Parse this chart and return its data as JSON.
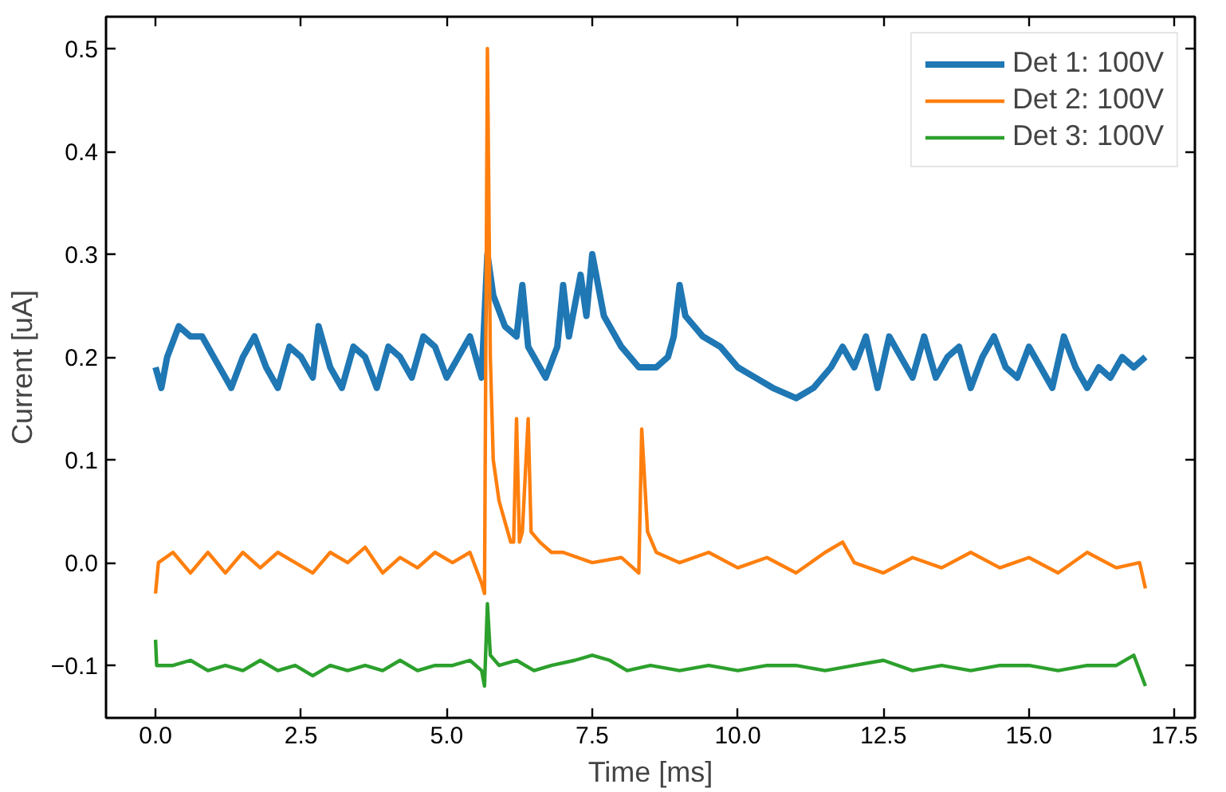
{
  "chart_data": {
    "type": "line",
    "xlabel": "Time [ms]",
    "ylabel": "Current [uA]",
    "xlim": [
      -0.85,
      17.85
    ],
    "ylim": [
      -0.151,
      0.531
    ],
    "xticks": [
      {
        "value": 0,
        "label": "0.0"
      },
      {
        "value": 2.5,
        "label": "2.5"
      },
      {
        "value": 5,
        "label": "5.0"
      },
      {
        "value": 7.5,
        "label": "7.5"
      },
      {
        "value": 10,
        "label": "10.0"
      },
      {
        "value": 12.5,
        "label": "12.5"
      },
      {
        "value": 15,
        "label": "15.0"
      },
      {
        "value": 17.5,
        "label": "17.5"
      }
    ],
    "yticks": [
      {
        "value": -0.1,
        "label": "−0.1"
      },
      {
        "value": 0,
        "label": "0.0"
      },
      {
        "value": 0.1,
        "label": "0.1"
      },
      {
        "value": 0.2,
        "label": "0.2"
      },
      {
        "value": 0.3,
        "label": "0.3"
      },
      {
        "value": 0.4,
        "label": "0.4"
      },
      {
        "value": 0.5,
        "label": "0.5"
      }
    ],
    "grid": false,
    "legend": "top right",
    "marker": "none",
    "line_style": "solid",
    "series": [
      {
        "name": "Det 1: 100V",
        "color": "#1f77b4",
        "x": [
          0,
          0.1,
          0.2,
          0.4,
          0.6,
          0.8,
          1.0,
          1.2,
          1.3,
          1.5,
          1.7,
          1.9,
          2.1,
          2.3,
          2.5,
          2.7,
          2.8,
          3.0,
          3.2,
          3.4,
          3.6,
          3.8,
          4.0,
          4.2,
          4.4,
          4.6,
          4.8,
          5.0,
          5.2,
          5.4,
          5.6,
          5.7,
          5.8,
          6.0,
          6.2,
          6.3,
          6.4,
          6.6,
          6.7,
          6.9,
          7.0,
          7.1,
          7.3,
          7.4,
          7.5,
          7.7,
          8.0,
          8.3,
          8.6,
          8.8,
          8.9,
          9.0,
          9.1,
          9.4,
          9.7,
          10.0,
          10.3,
          10.6,
          11.0,
          11.3,
          11.6,
          11.8,
          12.0,
          12.2,
          12.4,
          12.6,
          12.8,
          13.0,
          13.2,
          13.4,
          13.6,
          13.8,
          14.0,
          14.2,
          14.4,
          14.6,
          14.8,
          15.0,
          15.2,
          15.4,
          15.6,
          15.8,
          16.0,
          16.2,
          16.4,
          16.6,
          16.8,
          17.0
        ],
        "values": [
          0.19,
          0.17,
          0.2,
          0.23,
          0.22,
          0.22,
          0.2,
          0.18,
          0.17,
          0.2,
          0.22,
          0.19,
          0.17,
          0.21,
          0.2,
          0.18,
          0.23,
          0.19,
          0.17,
          0.21,
          0.2,
          0.17,
          0.21,
          0.2,
          0.18,
          0.22,
          0.21,
          0.18,
          0.2,
          0.22,
          0.18,
          0.3,
          0.26,
          0.23,
          0.22,
          0.27,
          0.21,
          0.19,
          0.18,
          0.21,
          0.27,
          0.22,
          0.28,
          0.24,
          0.3,
          0.24,
          0.21,
          0.19,
          0.19,
          0.2,
          0.22,
          0.27,
          0.24,
          0.22,
          0.21,
          0.19,
          0.18,
          0.17,
          0.16,
          0.17,
          0.19,
          0.21,
          0.19,
          0.22,
          0.17,
          0.22,
          0.2,
          0.18,
          0.22,
          0.18,
          0.2,
          0.21,
          0.17,
          0.2,
          0.22,
          0.19,
          0.18,
          0.21,
          0.19,
          0.17,
          0.22,
          0.19,
          0.17,
          0.19,
          0.18,
          0.2,
          0.19,
          0.2
        ]
      },
      {
        "name": "Det 2: 100V",
        "color": "#ff7f0e",
        "x": [
          0,
          0.05,
          0.3,
          0.6,
          0.9,
          1.2,
          1.5,
          1.8,
          2.1,
          2.4,
          2.7,
          3.0,
          3.3,
          3.6,
          3.9,
          4.2,
          4.5,
          4.8,
          5.1,
          5.4,
          5.6,
          5.65,
          5.7,
          5.75,
          5.8,
          5.9,
          6.0,
          6.1,
          6.15,
          6.2,
          6.25,
          6.3,
          6.4,
          6.45,
          6.6,
          6.8,
          7.0,
          7.5,
          8.0,
          8.3,
          8.35,
          8.45,
          8.6,
          9.0,
          9.5,
          10.0,
          10.5,
          11.0,
          11.5,
          11.8,
          12.0,
          12.5,
          13.0,
          13.5,
          14.0,
          14.5,
          15.0,
          15.5,
          16.0,
          16.5,
          16.9,
          17.0
        ],
        "values": [
          -0.03,
          0.0,
          0.01,
          -0.01,
          0.01,
          -0.01,
          0.01,
          -0.005,
          0.01,
          0.0,
          -0.01,
          0.01,
          0.0,
          0.015,
          -0.01,
          0.005,
          -0.005,
          0.01,
          0.0,
          0.01,
          -0.02,
          -0.03,
          0.5,
          0.2,
          0.1,
          0.06,
          0.04,
          0.02,
          0.02,
          0.14,
          0.02,
          0.03,
          0.14,
          0.03,
          0.02,
          0.01,
          0.01,
          0.0,
          0.005,
          -0.01,
          0.13,
          0.03,
          0.01,
          0.0,
          0.01,
          -0.005,
          0.005,
          -0.01,
          0.01,
          0.02,
          0.0,
          -0.01,
          0.005,
          -0.005,
          0.01,
          -0.005,
          0.005,
          -0.01,
          0.01,
          -0.005,
          0.0,
          -0.025
        ]
      },
      {
        "name": "Det 3: 100V",
        "color": "#2ca02c",
        "x": [
          0,
          0.02,
          0.3,
          0.6,
          0.9,
          1.2,
          1.5,
          1.8,
          2.1,
          2.4,
          2.7,
          3.0,
          3.3,
          3.6,
          3.9,
          4.2,
          4.5,
          4.8,
          5.1,
          5.4,
          5.6,
          5.65,
          5.7,
          5.75,
          5.9,
          6.2,
          6.5,
          6.8,
          7.2,
          7.5,
          7.8,
          8.1,
          8.5,
          9.0,
          9.5,
          10.0,
          10.5,
          11.0,
          11.5,
          12.0,
          12.5,
          13.0,
          13.5,
          14.0,
          14.5,
          15.0,
          15.5,
          16.0,
          16.5,
          16.8,
          17.0
        ],
        "values": [
          -0.075,
          -0.1,
          -0.1,
          -0.095,
          -0.105,
          -0.1,
          -0.105,
          -0.095,
          -0.105,
          -0.1,
          -0.11,
          -0.1,
          -0.105,
          -0.1,
          -0.105,
          -0.095,
          -0.105,
          -0.1,
          -0.1,
          -0.095,
          -0.105,
          -0.12,
          -0.04,
          -0.09,
          -0.1,
          -0.095,
          -0.105,
          -0.1,
          -0.095,
          -0.09,
          -0.095,
          -0.105,
          -0.1,
          -0.105,
          -0.1,
          -0.105,
          -0.1,
          -0.1,
          -0.105,
          -0.1,
          -0.095,
          -0.105,
          -0.1,
          -0.105,
          -0.1,
          -0.1,
          -0.105,
          -0.1,
          -0.1,
          -0.09,
          -0.12
        ]
      }
    ]
  }
}
